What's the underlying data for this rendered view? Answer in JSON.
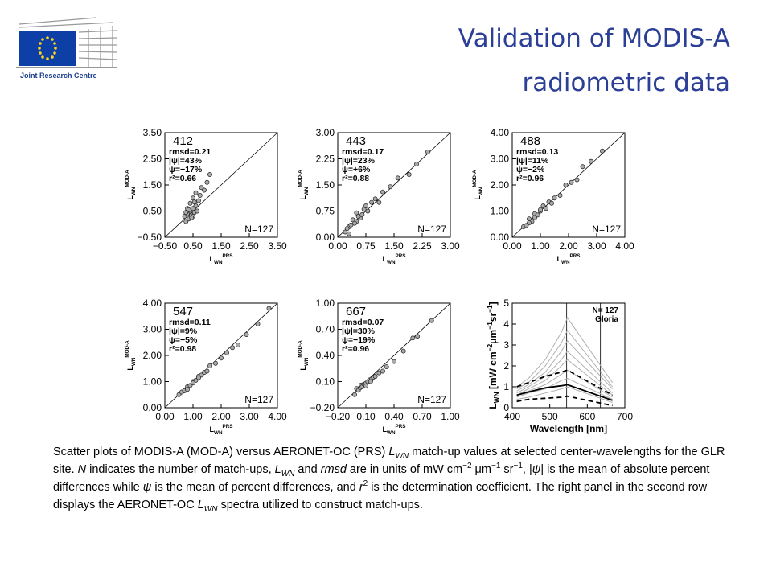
{
  "header": {
    "org": "Joint Research Centre",
    "title": [
      "Validation of MODIS-A",
      "radiometric data"
    ]
  },
  "chart_data": [
    {
      "type": "scatter",
      "label": "412",
      "stats": [
        "rmsd=0.21",
        "|ψ|=43%",
        "ψ=−17%",
        "r²=0.66"
      ],
      "n": "N=127",
      "xlabel": [
        {
          "text": "L"
        },
        {
          "text": "WN",
          "sub": true
        },
        {
          "text": "PRS",
          "sup": true
        }
      ],
      "ylabel": [
        {
          "text": "L"
        },
        {
          "text": "WN",
          "sub": true
        },
        {
          "text": "MOD-A",
          "sup": true
        }
      ],
      "xlim": [
        -0.5,
        3.5
      ],
      "ylim": [
        -0.5,
        3.5
      ],
      "xticks": [
        {
          "value": -0.5,
          "label": "−0.50"
        },
        {
          "value": 0.5,
          "label": "0.50"
        },
        {
          "value": 1.5,
          "label": "1.50"
        },
        {
          "value": 2.5,
          "label": "2.50"
        },
        {
          "value": 3.5,
          "label": "3.50"
        }
      ],
      "yticks": [
        {
          "value": -0.5,
          "label": "−0.50"
        },
        {
          "value": 0.5,
          "label": "0.50"
        },
        {
          "value": 1.5,
          "label": "1.50"
        },
        {
          "value": 2.5,
          "label": "2.50"
        },
        {
          "value": 3.5,
          "label": "3.50"
        }
      ],
      "x": [
        0.2,
        0.25,
        0.3,
        0.3,
        0.35,
        0.4,
        0.4,
        0.45,
        0.5,
        0.5,
        0.55,
        0.6,
        0.6,
        0.65,
        0.7,
        0.75,
        0.8,
        0.9,
        1.0,
        1.1,
        0.5,
        0.35,
        0.45,
        0.55,
        0.25
      ],
      "y": [
        0.3,
        0.1,
        0.4,
        0.6,
        0.2,
        0.5,
        0.8,
        0.35,
        0.6,
        1.0,
        0.45,
        0.7,
        1.2,
        0.5,
        0.9,
        1.1,
        1.4,
        1.3,
        1.6,
        1.9,
        0.3,
        0.55,
        0.25,
        0.85,
        0.45
      ]
    },
    {
      "type": "scatter",
      "label": "443",
      "stats": [
        "rmsd=0.17",
        "|ψ|=23%",
        "ψ=+6%",
        "r²=0.88"
      ],
      "n": "N=127",
      "xlabel": [
        {
          "text": "L"
        },
        {
          "text": "WN",
          "sub": true
        },
        {
          "text": "PRS",
          "sup": true
        }
      ],
      "ylabel": [
        {
          "text": "L"
        },
        {
          "text": "WN",
          "sub": true
        },
        {
          "text": "MOD-A",
          "sup": true
        }
      ],
      "xlim": [
        0,
        3
      ],
      "ylim": [
        0,
        3
      ],
      "xticks": [
        {
          "value": 0,
          "label": "0.00"
        },
        {
          "value": 0.75,
          "label": "0.75"
        },
        {
          "value": 1.5,
          "label": "1.50"
        },
        {
          "value": 2.25,
          "label": "2.25"
        },
        {
          "value": 3,
          "label": "3.00"
        }
      ],
      "yticks": [
        {
          "value": 0,
          "label": "0.00"
        },
        {
          "value": 0.75,
          "label": "0.75"
        },
        {
          "value": 1.5,
          "label": "1.50"
        },
        {
          "value": 2.25,
          "label": "2.25"
        },
        {
          "value": 3,
          "label": "3.00"
        }
      ],
      "x": [
        0.2,
        0.3,
        0.3,
        0.4,
        0.5,
        0.5,
        0.6,
        0.7,
        0.8,
        0.9,
        1.0,
        1.1,
        1.2,
        1.4,
        1.6,
        1.9,
        2.1,
        2.4,
        0.35,
        0.45,
        0.55,
        0.65,
        0.25,
        0.75
      ],
      "y": [
        0.15,
        0.3,
        0.1,
        0.5,
        0.45,
        0.7,
        0.55,
        0.8,
        0.75,
        1.0,
        1.1,
        1.0,
        1.3,
        1.45,
        1.7,
        1.8,
        2.1,
        2.45,
        0.35,
        0.4,
        0.6,
        0.65,
        0.25,
        0.9
      ]
    },
    {
      "type": "scatter",
      "label": "488",
      "stats": [
        "rmsd=0.13",
        "|ψ|=11%",
        "ψ=−2%",
        "r²=0.96"
      ],
      "n": "N=127",
      "xlabel": [
        {
          "text": "L"
        },
        {
          "text": "WN",
          "sub": true
        },
        {
          "text": "PRS",
          "sup": true
        }
      ],
      "ylabel": [
        {
          "text": "L"
        },
        {
          "text": "WN",
          "sub": true
        },
        {
          "text": "MOD-A",
          "sup": true
        }
      ],
      "xlim": [
        0,
        4
      ],
      "ylim": [
        0,
        4
      ],
      "xticks": [
        {
          "value": 0,
          "label": "0.00"
        },
        {
          "value": 1,
          "label": "1.00"
        },
        {
          "value": 2,
          "label": "2.00"
        },
        {
          "value": 3,
          "label": "3.00"
        },
        {
          "value": 4,
          "label": "4.00"
        }
      ],
      "yticks": [
        {
          "value": 0,
          "label": "0.00"
        },
        {
          "value": 1,
          "label": "1.00"
        },
        {
          "value": 2,
          "label": "2.00"
        },
        {
          "value": 3,
          "label": "3.00"
        },
        {
          "value": 4,
          "label": "4.00"
        }
      ],
      "x": [
        0.4,
        0.5,
        0.6,
        0.7,
        0.8,
        0.9,
        1.0,
        1.1,
        1.2,
        1.3,
        1.5,
        1.7,
        1.9,
        2.1,
        2.3,
        2.5,
        2.8,
        3.2,
        0.6,
        0.8,
        1.0,
        1.4
      ],
      "y": [
        0.4,
        0.45,
        0.7,
        0.6,
        0.9,
        0.85,
        1.0,
        1.2,
        1.1,
        1.35,
        1.5,
        1.6,
        2.0,
        2.1,
        2.2,
        2.7,
        2.9,
        3.3,
        0.55,
        0.75,
        1.05,
        1.3
      ]
    },
    {
      "type": "scatter",
      "label": "547",
      "stats": [
        "rmsd=0.11",
        "|ψ|=9%",
        "ψ=−5%",
        "r²=0.98"
      ],
      "n": "N=127",
      "xlabel": [
        {
          "text": "L"
        },
        {
          "text": "WN",
          "sub": true
        },
        {
          "text": "PRS",
          "sup": true
        }
      ],
      "ylabel": [
        {
          "text": "L"
        },
        {
          "text": "WN",
          "sub": true
        },
        {
          "text": "MOD-A",
          "sup": true
        }
      ],
      "xlim": [
        0,
        4
      ],
      "ylim": [
        0,
        4
      ],
      "xticks": [
        {
          "value": 0,
          "label": "0.00"
        },
        {
          "value": 1,
          "label": "1.00"
        },
        {
          "value": 2,
          "label": "2.00"
        },
        {
          "value": 3,
          "label": "3.00"
        },
        {
          "value": 4,
          "label": "4.00"
        }
      ],
      "yticks": [
        {
          "value": 0,
          "label": "0.00"
        },
        {
          "value": 1,
          "label": "1.00"
        },
        {
          "value": 2,
          "label": "2.00"
        },
        {
          "value": 3,
          "label": "3.00"
        },
        {
          "value": 4,
          "label": "4.00"
        }
      ],
      "x": [
        0.5,
        0.6,
        0.7,
        0.8,
        0.9,
        1.0,
        1.1,
        1.2,
        1.3,
        1.4,
        1.5,
        1.6,
        1.8,
        2.0,
        2.2,
        2.4,
        2.6,
        2.9,
        3.3,
        3.7,
        0.8,
        1.0,
        1.2
      ],
      "y": [
        0.5,
        0.6,
        0.65,
        0.8,
        0.85,
        1.0,
        1.05,
        1.2,
        1.25,
        1.35,
        1.4,
        1.6,
        1.7,
        1.9,
        2.1,
        2.3,
        2.4,
        2.8,
        3.2,
        3.8,
        0.7,
        0.95,
        1.15
      ]
    },
    {
      "type": "scatter",
      "label": "667",
      "stats": [
        "rmsd=0.07",
        "|ψ|=30%",
        "ψ=−19%",
        "r²=0.96"
      ],
      "n": "N=127",
      "xlabel": [
        {
          "text": "L"
        },
        {
          "text": "WN",
          "sub": true
        },
        {
          "text": "PRS",
          "sup": true
        }
      ],
      "ylabel": [
        {
          "text": "L"
        },
        {
          "text": "WN",
          "sub": true
        },
        {
          "text": "MOD-A",
          "sup": true
        }
      ],
      "xlim": [
        -0.2,
        1.0
      ],
      "ylim": [
        -0.2,
        1.0
      ],
      "xticks": [
        {
          "value": -0.2,
          "label": "−0.20"
        },
        {
          "value": 0.1,
          "label": "0.10"
        },
        {
          "value": 0.4,
          "label": "0.40"
        },
        {
          "value": 0.7,
          "label": "0.70"
        },
        {
          "value": 1.0,
          "label": "1.00"
        }
      ],
      "yticks": [
        {
          "value": -0.2,
          "label": "−0.20"
        },
        {
          "value": 0.1,
          "label": "0.10"
        },
        {
          "value": 0.4,
          "label": "0.40"
        },
        {
          "value": 0.7,
          "label": "0.70"
        },
        {
          "value": 1.0,
          "label": "1.00"
        }
      ],
      "x": [
        -0.02,
        0.0,
        0.02,
        0.04,
        0.05,
        0.06,
        0.08,
        0.1,
        0.12,
        0.14,
        0.16,
        0.18,
        0.2,
        0.24,
        0.28,
        0.32,
        0.4,
        0.5,
        0.6,
        0.65,
        0.8,
        0.1,
        0.15
      ],
      "y": [
        -0.05,
        0.02,
        0.0,
        0.03,
        0.06,
        0.04,
        0.07,
        0.08,
        0.1,
        0.12,
        0.13,
        0.15,
        0.16,
        0.2,
        0.22,
        0.27,
        0.33,
        0.45,
        0.6,
        0.62,
        0.8,
        0.05,
        0.1
      ]
    },
    {
      "type": "line",
      "annotations": [
        "N= 127",
        "Gloria"
      ],
      "xlabel": [
        {
          "text": "Wavelength [nm]"
        }
      ],
      "ylabel": [
        {
          "text": "L"
        },
        {
          "text": "WN",
          "sub": true
        },
        {
          "text": " [mW cm"
        },
        {
          "text": "−2",
          "sup": true
        },
        {
          "text": "μm"
        },
        {
          "text": "−1",
          "sup": true
        },
        {
          "text": "sr"
        },
        {
          "text": "−1",
          "sup": true
        },
        {
          "text": "]"
        }
      ],
      "xlim": [
        400,
        700
      ],
      "ylim": [
        0,
        5
      ],
      "xticks": [
        400,
        500,
        600,
        700
      ],
      "yticks": [
        0,
        1,
        2,
        3,
        4,
        5
      ],
      "vlines": [
        545,
        635
      ],
      "x": [
        412,
        443,
        488,
        531,
        547,
        667
      ],
      "series": [
        {
          "color": "#b0b0b0",
          "dash": false,
          "values": [
            1.0,
            1.4,
            2.3,
            3.6,
            4.3,
            1.2
          ]
        },
        {
          "color": "#b0b0b0",
          "dash": false,
          "values": [
            0.9,
            1.2,
            2.0,
            3.1,
            3.7,
            1.0
          ]
        },
        {
          "color": "#b0b0b0",
          "dash": false,
          "values": [
            0.8,
            1.1,
            1.7,
            2.7,
            3.2,
            0.9
          ]
        },
        {
          "color": "#b0b0b0",
          "dash": false,
          "values": [
            0.7,
            1.0,
            1.5,
            2.3,
            2.7,
            0.7
          ]
        },
        {
          "color": "#b0b0b0",
          "dash": false,
          "values": [
            0.6,
            0.9,
            1.3,
            2.0,
            2.3,
            0.6
          ]
        },
        {
          "color": "#b0b0b0",
          "dash": false,
          "values": [
            0.6,
            0.8,
            1.1,
            1.6,
            1.8,
            0.5
          ]
        },
        {
          "color": "#b0b0b0",
          "dash": false,
          "values": [
            0.5,
            0.7,
            0.9,
            1.3,
            1.4,
            0.4
          ]
        },
        {
          "color": "#b0b0b0",
          "dash": false,
          "values": [
            0.4,
            0.5,
            0.7,
            0.9,
            1.0,
            0.25
          ]
        },
        {
          "color": "#000000",
          "dash": true,
          "values": [
            1.0,
            1.2,
            1.5,
            1.7,
            1.8,
            0.6
          ]
        },
        {
          "color": "#000000",
          "dash": false,
          "values": [
            0.6,
            0.75,
            0.95,
            1.05,
            1.1,
            0.35
          ]
        },
        {
          "color": "#000000",
          "dash": true,
          "values": [
            0.3,
            0.4,
            0.45,
            0.5,
            0.55,
            0.1
          ]
        }
      ]
    }
  ],
  "caption": [
    {
      "text": "Scatter plots of MODIS-A (MOD-A) versus AERONET-OC (PRS) "
    },
    {
      "text": "L",
      "i": true
    },
    {
      "text": "WN",
      "i": true,
      "sub": true
    },
    {
      "text": " match-up values at selected center-wavelengths for the GLR site. "
    },
    {
      "text": "N",
      "i": true
    },
    {
      "text": " indicates the number of match-ups, "
    },
    {
      "text": "L",
      "i": true
    },
    {
      "text": "WN",
      "i": true,
      "sub": true
    },
    {
      "text": " and "
    },
    {
      "text": "rmsd",
      "i": true
    },
    {
      "text": " are in units of mW cm"
    },
    {
      "text": "−2",
      "sup": true
    },
    {
      "text": " μm"
    },
    {
      "text": "−1",
      "sup": true
    },
    {
      "text": " sr"
    },
    {
      "text": "−1",
      "sup": true
    },
    {
      "text": ", |"
    },
    {
      "text": "ψ",
      "i": true
    },
    {
      "text": "| is the mean of absolute percent differences while "
    },
    {
      "text": "ψ",
      "i": true
    },
    {
      "text": " is the mean of percent differences, and "
    },
    {
      "text": "r",
      "i": true
    },
    {
      "text": "2",
      "sup": true
    },
    {
      "text": " is the determination coefficient. The right panel in the second row displays the AERONET-OC "
    },
    {
      "text": "L",
      "i": true
    },
    {
      "text": "WN",
      "i": true,
      "sub": true
    },
    {
      "text": " spectra utilized to construct match-ups."
    }
  ]
}
